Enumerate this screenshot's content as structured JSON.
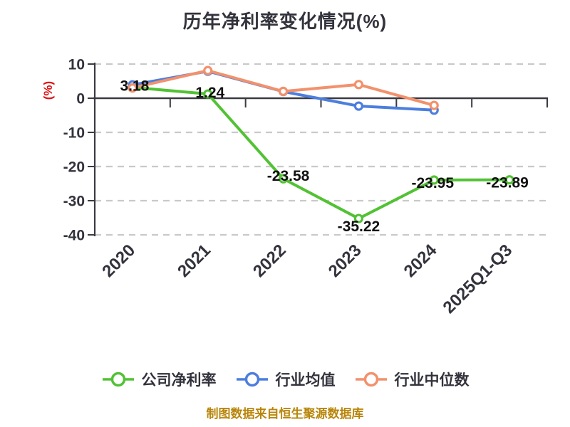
{
  "title": "历年净利率变化情况(%)",
  "footer": "制图数据来自恒生聚源数据库",
  "chart_data": {
    "type": "line",
    "title": "历年净利率变化情况(%)",
    "ylabel": "(%)",
    "categories": [
      "2020",
      "2021",
      "2022",
      "2023",
      "2024",
      "2025Q1-Q3"
    ],
    "y_ticks": [
      10,
      0,
      -10,
      -20,
      -30,
      -40
    ],
    "ylim": [
      -40,
      10
    ],
    "grid": "horizontal-dashed",
    "legend_position": "bottom",
    "series": [
      {
        "id": "company-net-margin",
        "name": "公司净利率",
        "color": "#52c234",
        "values": [
          3.18,
          1.24,
          -23.58,
          -35.22,
          -23.95,
          -23.89
        ],
        "point_labels": [
          "3.18",
          "1.24",
          "-23.58",
          "-35.22",
          "-23.95",
          "-23.89"
        ]
      },
      {
        "id": "industry-mean",
        "name": "行业均值",
        "color": "#4c7ede",
        "values": [
          3.9,
          7.9,
          1.95,
          -2.3,
          -3.5
        ]
      },
      {
        "id": "industry-median",
        "name": "行业中位数",
        "color": "#f2916c",
        "values": [
          3.0,
          8.1,
          2.0,
          4.0,
          -2.1
        ]
      }
    ]
  },
  "colors": {
    "background": "#ffffff",
    "axis": "#3a3a42",
    "grid": "#c9c9c9",
    "tick_text": "#33333d",
    "data_label": "#111111",
    "ylabel_red": "#e01010",
    "title": "#33333d",
    "footer": "#b8860b"
  }
}
